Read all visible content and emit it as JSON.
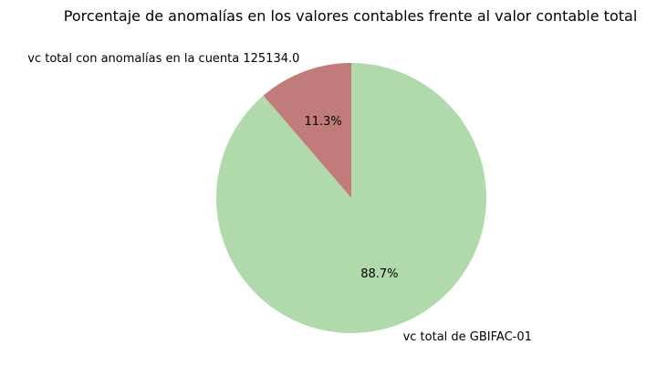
{
  "chart_data": {
    "type": "pie",
    "title": "Porcentaje de anomalías en los valores contables frente al valor contable total",
    "start_angle_deg": 90,
    "direction": "counterclockwise",
    "slices": [
      {
        "label": "vc total con anomalías en la cuenta 125134.0",
        "percent": 11.3,
        "pct_text": "11.3%",
        "color": "#c27b7b"
      },
      {
        "label": "vc total de GBIFAC-01",
        "percent": 88.7,
        "pct_text": "88.7%",
        "color": "#b0daab"
      }
    ]
  }
}
